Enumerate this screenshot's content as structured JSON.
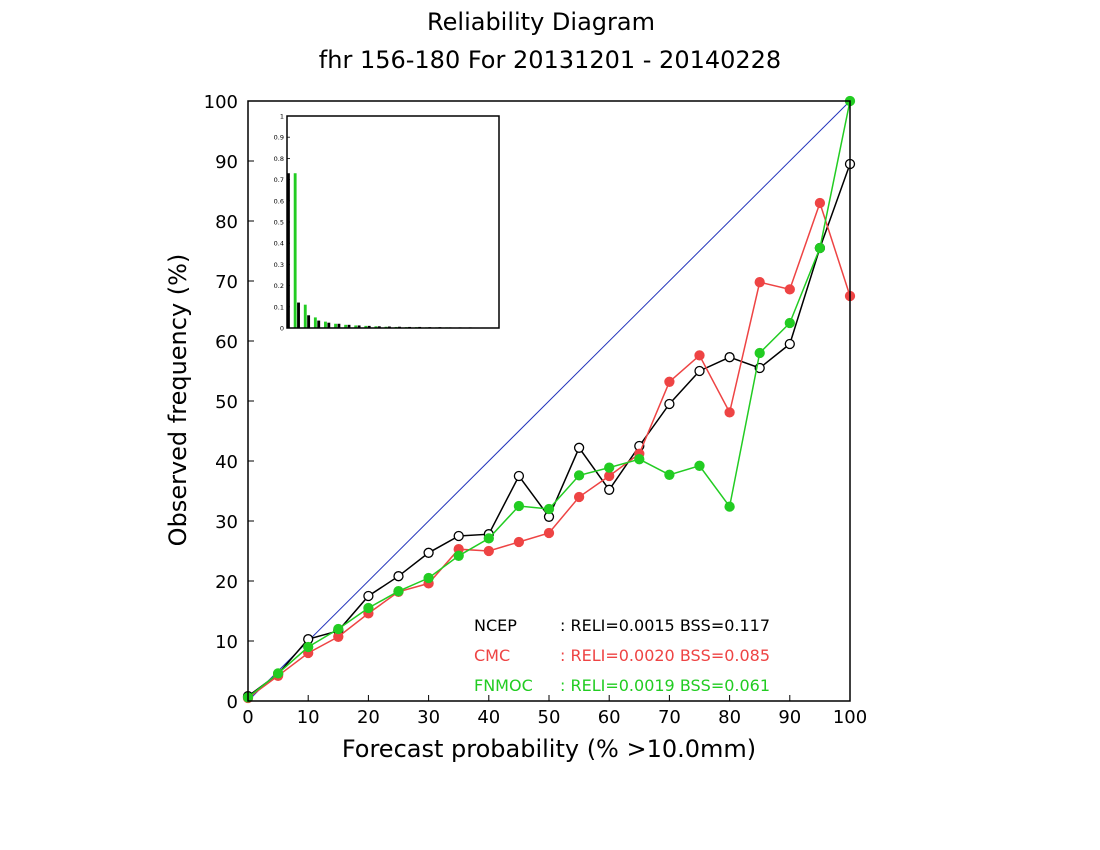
{
  "chart_data": {
    "type": "line",
    "title": "Reliability Diagram",
    "subtitle": "fhr 156-180 For 20131201 - 20140228",
    "xlabel": "Forecast probability (% >10.0mm)",
    "ylabel": "Observed frequency (%)",
    "xlim": [
      0,
      100
    ],
    "ylim": [
      0,
      100
    ],
    "xticks": [
      "0",
      "10",
      "20",
      "30",
      "40",
      "50",
      "60",
      "70",
      "80",
      "90",
      "100"
    ],
    "yticks": [
      "0",
      "10",
      "20",
      "30",
      "40",
      "50",
      "60",
      "70",
      "80",
      "90",
      "100"
    ],
    "diagonal_color": "#2233bb",
    "series": [
      {
        "name": "NCEP",
        "color": "#000000",
        "marker": "open-circle",
        "stats": ": RELI=0.0015 BSS=0.117",
        "x": [
          0,
          5,
          10,
          15,
          20,
          25,
          30,
          35,
          40,
          45,
          50,
          55,
          60,
          65,
          70,
          75,
          80,
          85,
          90,
          95,
          100
        ],
        "y": [
          0.8,
          4.5,
          10.3,
          11.7,
          17.5,
          20.8,
          24.7,
          27.5,
          27.8,
          37.5,
          30.7,
          42.2,
          35.2,
          42.5,
          49.5,
          55.0,
          57.3,
          55.5,
          59.5,
          75.5,
          89.5
        ]
      },
      {
        "name": "CMC",
        "color": "#ee4444",
        "marker": "filled-circle",
        "stats": ": RELI=0.0020 BSS=0.085",
        "x": [
          0,
          5,
          10,
          15,
          20,
          25,
          30,
          35,
          40,
          45,
          50,
          55,
          60,
          65,
          70,
          75,
          80,
          85,
          90,
          95,
          100
        ],
        "y": [
          0.5,
          4.2,
          8.0,
          10.7,
          14.6,
          18.2,
          19.6,
          25.3,
          25.0,
          26.5,
          28.0,
          34.0,
          37.5,
          41.2,
          53.2,
          57.6,
          48.1,
          69.8,
          68.6,
          83.0,
          67.5
        ]
      },
      {
        "name": "FNMOC",
        "color": "#22cc22",
        "marker": "filled-circle",
        "stats": ": RELI=0.0019 BSS=0.061",
        "x": [
          0,
          5,
          10,
          15,
          20,
          25,
          30,
          35,
          40,
          45,
          50,
          55,
          60,
          65,
          70,
          75,
          80,
          85,
          90,
          95,
          100
        ],
        "y": [
          0.6,
          4.6,
          9.0,
          12.0,
          15.5,
          18.3,
          20.5,
          24.2,
          27.1,
          32.5,
          32.0,
          37.6,
          38.9,
          40.3,
          37.7,
          39.2,
          32.4,
          58.0,
          63.0,
          75.5,
          100.0
        ]
      }
    ],
    "inset": {
      "type": "bar",
      "ylim": [
        0,
        1
      ],
      "yticks": [
        "0",
        "0.1",
        "0.2",
        "0.3",
        "0.4",
        "0.5",
        "0.6",
        "0.7",
        "0.8",
        "0.9",
        "1"
      ],
      "series": [
        {
          "name": "NCEP",
          "color": "#000000",
          "values": [
            0.73,
            0.12,
            0.06,
            0.035,
            0.025,
            0.02,
            0.015,
            0.012,
            0.01,
            0.008,
            0.007,
            0.006,
            0.005,
            0.005,
            0.004,
            0.004,
            0.003,
            0.003,
            0.003,
            0.002,
            0.002
          ]
        },
        {
          "name": "CMC",
          "color": "#ee4444",
          "values": [
            0.0,
            0.0,
            0.0,
            0.0,
            0.0,
            0.0,
            0.0,
            0.0,
            0.0,
            0.0,
            0.0,
            0.0,
            0.0,
            0.0,
            0.0,
            0.0,
            0.0,
            0.0,
            0.0,
            0.0,
            0.0
          ]
        },
        {
          "name": "FNMOC",
          "color": "#22cc22",
          "values": [
            0.73,
            0.11,
            0.05,
            0.03,
            0.02,
            0.015,
            0.012,
            0.01,
            0.008,
            0.006,
            0.005,
            0.004,
            0.004,
            0.003,
            0.003,
            0.003,
            0.002,
            0.002,
            0.002,
            0.002,
            0.002
          ]
        }
      ]
    }
  }
}
